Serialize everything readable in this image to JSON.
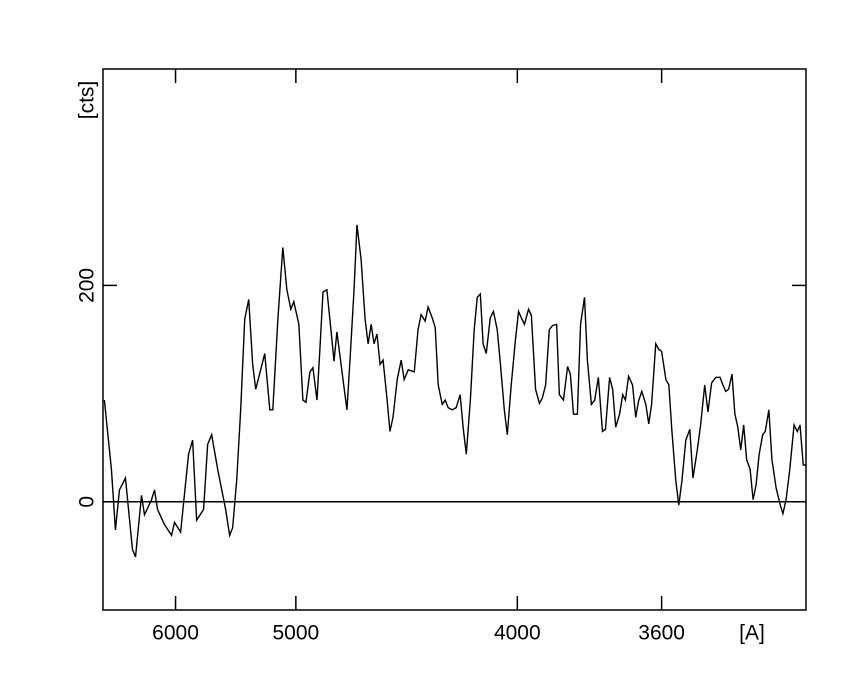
{
  "chart_data": {
    "type": "line",
    "x_label": "[A]",
    "y_label": "[cts]",
    "xscale": "inverse-square",
    "xlim": [
      7000,
      3300
    ],
    "xticks": [
      6000,
      5000,
      4000,
      3600
    ],
    "ylim": [
      -100,
      400
    ],
    "yticks": [
      0,
      200
    ],
    "zero_line": true,
    "color": "#000000",
    "x": [
      6976,
      6858,
      6793,
      6730,
      6639,
      6537,
      6494,
      6412,
      6373,
      6282,
      6245,
      6208,
      6125,
      6044,
      6011,
      5945,
      5862,
      5821,
      5781,
      5714,
      5676,
      5639,
      5585,
      5516,
      5482,
      5457,
      5424,
      5392,
      5360,
      5329,
      5299,
      5276,
      5210,
      5174,
      5153,
      5118,
      5085,
      5058,
      5032,
      5013,
      4981,
      4956,
      4937,
      4913,
      4895,
      4871,
      4854,
      4836,
      4814,
      4791,
      4774,
      4758,
      4725,
      4704,
      4688,
      4667,
      4652,
      4631,
      4611,
      4596,
      4581,
      4567,
      4553,
      4538,
      4524,
      4505,
      4492,
      4478,
      4459,
      4441,
      4428,
      4410,
      4384,
      4368,
      4355,
      4338,
      4326,
      4309,
      4297,
      4285,
      4269,
      4257,
      4246,
      4230,
      4215,
      4200,
      4188,
      4177,
      4162,
      4148,
      4137,
      4126,
      4116,
      4105,
      4091,
      4080,
      4067,
      4056,
      4043,
      4033,
      4020,
      4006,
      3996,
      3987,
      3977,
      3964,
      3955,
      3942,
      3930,
      3921,
      3911,
      3900,
      3890,
      3878,
      3870,
      3858,
      3846,
      3838,
      3829,
      3818,
      3809,
      3798,
      3790,
      3779,
      3770,
      3760,
      3749,
      3741,
      3730,
      3722,
      3714,
      3704,
      3696,
      3689,
      3681,
      3671,
      3663,
      3656,
      3648,
      3638,
      3631,
      3624,
      3614,
      3607,
      3600,
      3590,
      3583,
      3576,
      3567,
      3560,
      3553,
      3544,
      3535,
      3528,
      3519,
      3511,
      3502,
      3495,
      3487,
      3478,
      3469,
      3463,
      3457,
      3451,
      3444,
      3438,
      3432,
      3426,
      3420,
      3414,
      3407,
      3401,
      3395,
      3389,
      3382,
      3377,
      3370,
      3364,
      3356,
      3348,
      3343,
      3337,
      3330,
      3322,
      3316,
      3311,
      3305,
      3298
    ],
    "values": [
      94,
      30,
      -26,
      11,
      22,
      -44,
      -51,
      6,
      -12,
      2,
      11,
      -7,
      -21,
      -31,
      -19,
      -28,
      44,
      57,
      -17,
      -7,
      53,
      62,
      30,
      -7,
      -31,
      -24,
      20,
      85,
      169,
      187,
      127,
      104,
      137,
      85,
      85,
      169,
      235,
      196,
      178,
      185,
      164,
      94,
      92,
      120,
      124,
      94,
      141,
      194,
      196,
      159,
      130,
      157,
      113,
      85,
      131,
      196,
      256,
      224,
      169,
      146,
      164,
      146,
      155,
      127,
      131,
      94,
      65,
      78,
      113,
      131,
      113,
      122,
      120,
      159,
      173,
      167,
      180,
      170,
      161,
      108,
      90,
      94,
      87,
      85,
      87,
      99,
      67,
      44,
      94,
      159,
      189,
      192,
      146,
      137,
      170,
      176,
      159,
      127,
      85,
      62,
      108,
      150,
      176,
      170,
      164,
      178,
      172,
      104,
      91,
      96,
      108,
      159,
      163,
      164,
      99,
      94,
      125,
      118,
      81,
      81,
      164,
      189,
      131,
      90,
      94,
      115,
      65,
      67,
      115,
      104,
      69,
      81,
      99,
      94,
      116,
      108,
      78,
      93,
      102,
      90,
      72,
      90,
      146,
      141,
      139,
      113,
      108,
      66,
      20,
      -3,
      19,
      57,
      67,
      22,
      46,
      71,
      108,
      83,
      110,
      115,
      115,
      108,
      102,
      104,
      118,
      81,
      69,
      48,
      71,
      39,
      30,
      2,
      16,
      44,
      62,
      65,
      85,
      39,
      13,
      -3,
      -11,
      2,
      30,
      71,
      65,
      71,
      34,
      34
    ]
  }
}
